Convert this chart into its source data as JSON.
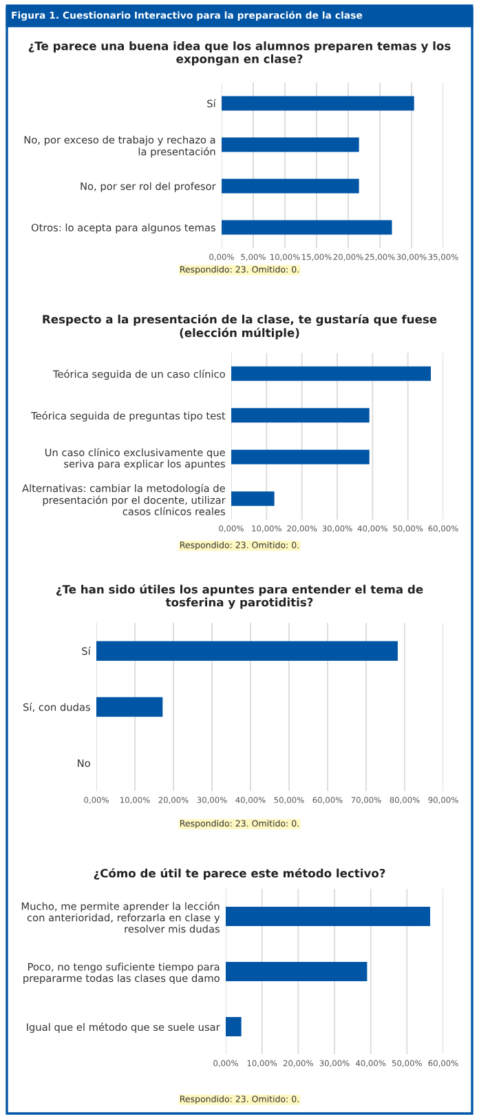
{
  "chart_data": [
    {
      "type": "bar",
      "orientation": "horizontal",
      "title": "¿Te parece una buena idea que los alumnos preparen temas y los expongan en clase?",
      "categories": [
        "Sí",
        "No, por exceso de trabajo y rechazo a la presentación",
        "No, por ser rol del profesor",
        "Otros: lo acepta para algunos temas"
      ],
      "values": [
        30.4,
        21.7,
        21.7,
        26.9
      ],
      "color": "#0055a5",
      "xlim": [
        0,
        35
      ],
      "xticks": [
        {
          "value": 0,
          "label": "0,00%"
        },
        {
          "value": 5,
          "label": "5,00%"
        },
        {
          "value": 10,
          "label": "10,00%"
        },
        {
          "value": 15,
          "label": "15,00%"
        },
        {
          "value": 20,
          "label": "20,00%"
        },
        {
          "value": 25,
          "label": "25,00%"
        },
        {
          "value": 30,
          "label": "30,00%"
        },
        {
          "value": 35,
          "label": "35,00%"
        }
      ],
      "grid": "x",
      "annotations": [
        "Figura 1. Cuestionario Interactivo para la preparación de la clase",
        "Respondido: 23. Omitido: 0."
      ]
    },
    {
      "type": "bar",
      "orientation": "horizontal",
      "title": "Respecto a la presentación de la clase, te gustaría que fuese (elección múltiple)",
      "categories": [
        "Teórica seguida de un caso clínico",
        "Teórica seguida de preguntas tipo test",
        "Un caso clínico exclusivamente que seriva para explicar los apuntes",
        "Alternativas: cambiar la metodología de presentación por el docente, utilizar casos clínicos reales"
      ],
      "values": [
        56.5,
        39.1,
        39.1,
        12.2
      ],
      "color": "#0055a5",
      "xlim": [
        0,
        60
      ],
      "xticks": [
        {
          "value": 0,
          "label": "0,00%"
        },
        {
          "value": 10,
          "label": "10,00%"
        },
        {
          "value": 20,
          "label": "20,00%"
        },
        {
          "value": 30,
          "label": "30,00%"
        },
        {
          "value": 40,
          "label": "40,00%"
        },
        {
          "value": 50,
          "label": "50,00%"
        },
        {
          "value": 60,
          "label": "60,00%"
        }
      ],
      "grid": "x",
      "annotations": [
        "Respondido: 23. Omitido: 0."
      ]
    },
    {
      "type": "bar",
      "orientation": "horizontal",
      "title": "¿Te han sido útiles los apuntes para entender el tema de tosferina y parotiditis?",
      "categories": [
        "Sí",
        "Sí, con dudas",
        "No"
      ],
      "values": [
        78.2,
        17.2,
        0
      ],
      "color": "#0055a5",
      "xlim": [
        0,
        90
      ],
      "xticks": [
        {
          "value": 0,
          "label": "0,00%"
        },
        {
          "value": 10,
          "label": "10,00%"
        },
        {
          "value": 20,
          "label": "20,00%"
        },
        {
          "value": 30,
          "label": "30,00%"
        },
        {
          "value": 40,
          "label": "40,00%"
        },
        {
          "value": 50,
          "label": "50,00%"
        },
        {
          "value": 60,
          "label": "60,00%"
        },
        {
          "value": 70,
          "label": "70,00%"
        },
        {
          "value": 80,
          "label": "80,00%"
        },
        {
          "value": 90,
          "label": "90,00%"
        }
      ],
      "grid": "x",
      "annotations": [
        "Respondido: 23. Omitido: 0."
      ]
    },
    {
      "type": "bar",
      "orientation": "horizontal",
      "title": "¿Cómo de útil te parece este método lectivo?",
      "categories": [
        "Mucho, me permite aprender la lección con anterioridad, reforzarla en clase y resolver mis dudas",
        "Poco, no tengo suficiente tiempo para prepararme todas las clases que damo",
        "Igual que el método que se suele usar"
      ],
      "values": [
        56.4,
        39.0,
        4.3
      ],
      "color": "#0055a5",
      "xlim": [
        0,
        60
      ],
      "xticks": [
        {
          "value": 0,
          "label": "0,00%"
        },
        {
          "value": 10,
          "label": "10,00%"
        },
        {
          "value": 20,
          "label": "20,00%"
        },
        {
          "value": 30,
          "label": "30,00%"
        },
        {
          "value": 40,
          "label": "40,00%"
        },
        {
          "value": 50,
          "label": "50,00%"
        },
        {
          "value": 60,
          "label": "60,00%"
        }
      ],
      "grid": "x",
      "annotations": [
        "Respondido: 23. Omitido: 0."
      ]
    }
  ]
}
